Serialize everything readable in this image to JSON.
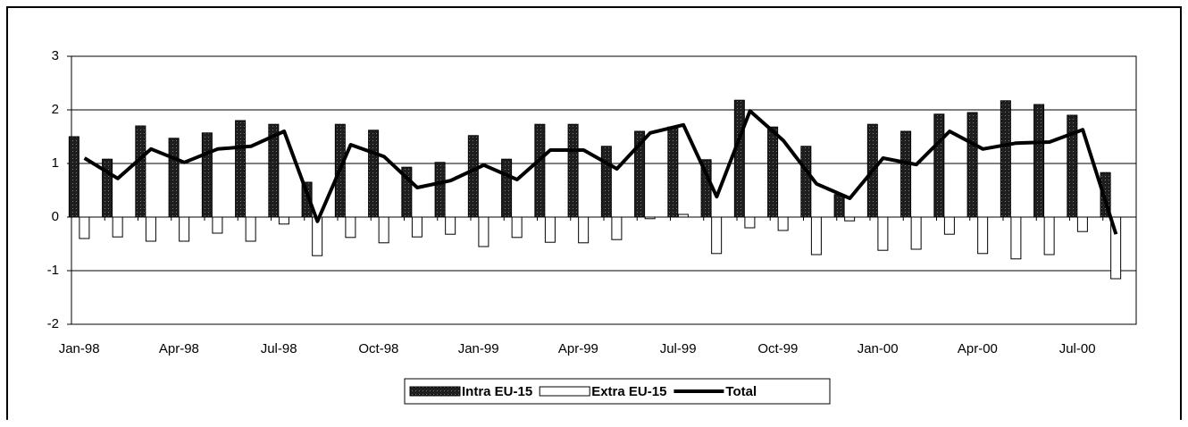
{
  "chart_data": {
    "type": "bar_line",
    "categories": [
      "Jan-98",
      null,
      null,
      "Apr-98",
      null,
      null,
      "Jul-98",
      null,
      null,
      "Oct-98",
      null,
      null,
      "Jan-99",
      null,
      null,
      "Apr-99",
      null,
      null,
      "Jul-99",
      null,
      null,
      "Oct-99",
      null,
      null,
      "Jan-00",
      null,
      null,
      "Apr-00",
      null,
      null,
      "Jul-00",
      null
    ],
    "series": [
      {
        "name": "Intra EU-15",
        "color": "#1e1e1e",
        "kind": "bar",
        "values": [
          1.5,
          1.08,
          1.7,
          1.47,
          1.57,
          1.8,
          1.73,
          0.65,
          1.73,
          1.62,
          0.93,
          1.02,
          1.52,
          1.08,
          1.73,
          1.73,
          1.32,
          1.6,
          1.68,
          1.07,
          2.18,
          1.68,
          1.32,
          0.42,
          1.73,
          1.6,
          1.92,
          1.95,
          2.17,
          2.1,
          1.9,
          0.83
        ]
      },
      {
        "name": "Extra EU-15",
        "color": "#ffffff",
        "kind": "bar",
        "values": [
          -0.4,
          -0.37,
          -0.45,
          -0.45,
          -0.3,
          -0.45,
          -0.13,
          -0.72,
          -0.38,
          -0.48,
          -0.37,
          -0.32,
          -0.55,
          -0.38,
          -0.47,
          -0.48,
          -0.42,
          -0.03,
          0.05,
          -0.68,
          -0.2,
          -0.25,
          -0.7,
          -0.07,
          -0.62,
          -0.6,
          -0.32,
          -0.68,
          -0.78,
          -0.7,
          -0.27,
          -1.15
        ]
      },
      {
        "name": "Total",
        "color": "#000000",
        "kind": "line",
        "values": [
          1.1,
          0.72,
          1.27,
          1.02,
          1.27,
          1.32,
          1.6,
          -0.08,
          1.35,
          1.13,
          0.55,
          0.68,
          0.97,
          0.7,
          1.25,
          1.25,
          0.9,
          1.57,
          1.72,
          0.38,
          1.98,
          1.43,
          0.62,
          0.35,
          1.1,
          0.98,
          1.6,
          1.27,
          1.38,
          1.4,
          1.63,
          -0.32
        ]
      }
    ],
    "ylim": [
      -2,
      3
    ],
    "yticks": [
      -2,
      -1,
      0,
      1,
      2,
      3
    ],
    "grid": true,
    "legend": "bottom"
  }
}
